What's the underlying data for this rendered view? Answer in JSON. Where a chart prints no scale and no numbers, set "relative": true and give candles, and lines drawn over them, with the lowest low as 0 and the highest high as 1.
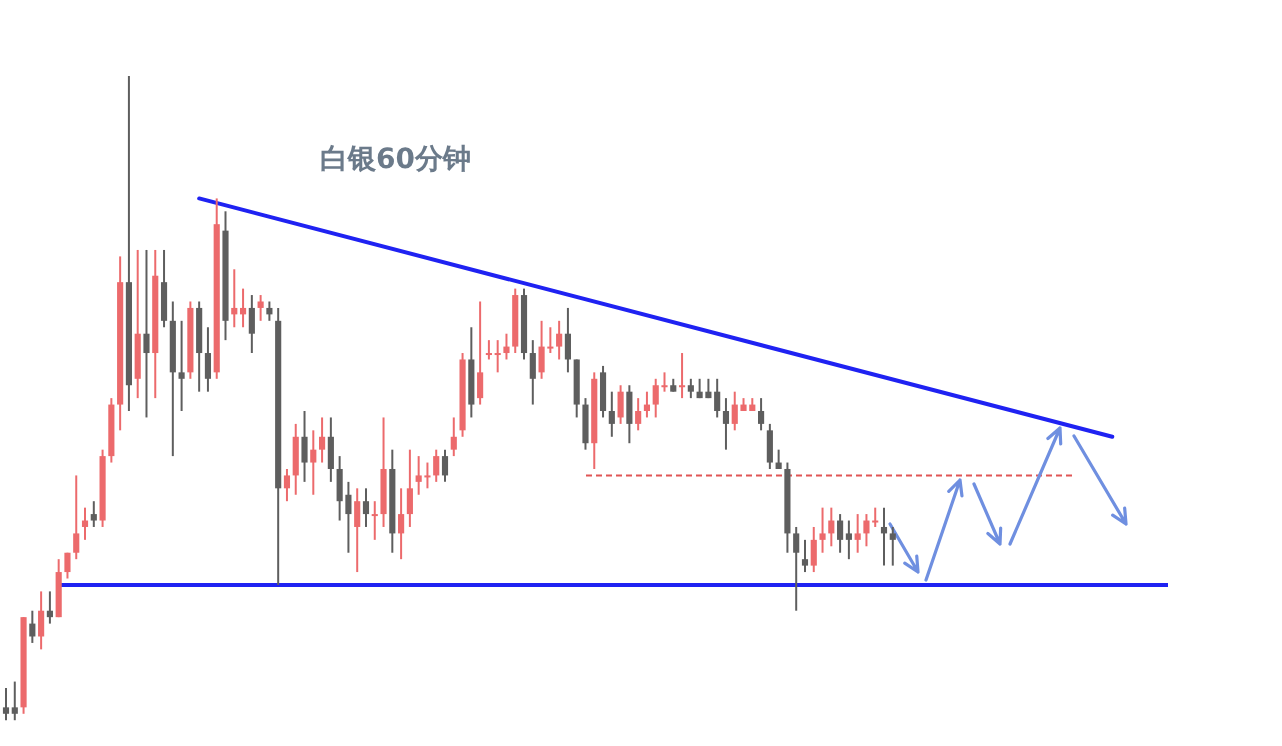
{
  "chart_data": {
    "type": "candlestick",
    "title": "白银60分钟",
    "relative": true,
    "categories": [
      null,
      null,
      null,
      null,
      null,
      null,
      null,
      null,
      null,
      null,
      null,
      null,
      null,
      null,
      null,
      null,
      null,
      null,
      null,
      null,
      null,
      null,
      null,
      null,
      null,
      null,
      null,
      null,
      null,
      null,
      null,
      null,
      null,
      null,
      null,
      null,
      null,
      null,
      null,
      null,
      null,
      null,
      null,
      null,
      null,
      null,
      null,
      null,
      null,
      null,
      null,
      null,
      null,
      null,
      null,
      null,
      null,
      null,
      null,
      null,
      null,
      null,
      null,
      null,
      null,
      null,
      null,
      null,
      null,
      null,
      null,
      null,
      null,
      null,
      null,
      null,
      null,
      null,
      null,
      null,
      null,
      null,
      null,
      null,
      null,
      null,
      null,
      null,
      null,
      null,
      null,
      null,
      null,
      null,
      null,
      null,
      null,
      null,
      null,
      null,
      null,
      null,
      null,
      null,
      null,
      null,
      null,
      null,
      null,
      null,
      null,
      null,
      null,
      null,
      null,
      null,
      null,
      null,
      null,
      null,
      null,
      null,
      null,
      null,
      null,
      null,
      null
    ],
    "ref_lines": [
      {
        "axis": "y",
        "value": 0.21,
        "color": "#1f22f2"
      },
      {
        "axis": "y",
        "value": 0.38,
        "color": "#e05555",
        "line_style": "dashed"
      }
    ],
    "ohlc": [
      [
        0.02,
        0.05,
        0,
        0.01
      ],
      [
        0.02,
        0.06,
        0.0,
        0.01
      ],
      [
        0.02,
        0.16,
        0.01,
        0.16
      ],
      [
        0.15,
        0.17,
        0.12,
        0.13
      ],
      [
        0.13,
        0.2,
        0.11,
        0.17
      ],
      [
        0.17,
        0.2,
        0.15,
        0.16
      ],
      [
        0.16,
        0.25,
        0.16,
        0.23
      ],
      [
        0.23,
        0.26,
        0.22,
        0.26
      ],
      [
        0.26,
        0.38,
        0.25,
        0.29
      ],
      [
        0.3,
        0.33,
        0.28,
        0.31
      ],
      [
        0.32,
        0.34,
        0.3,
        0.31
      ],
      [
        0.31,
        0.42,
        0.3,
        0.41
      ],
      [
        0.41,
        0.5,
        0.4,
        0.49
      ],
      [
        0.49,
        0.72,
        0.45,
        0.68
      ],
      [
        0.68,
        1,
        0.48,
        0.52
      ],
      [
        0.53,
        0.73,
        0.5,
        0.6
      ],
      [
        0.6,
        0.73,
        0.47,
        0.57
      ],
      [
        0.57,
        0.73,
        0.5,
        0.69
      ],
      [
        0.68,
        0.73,
        0.61,
        0.62
      ],
      [
        0.62,
        0.65,
        0.41,
        0.54
      ],
      [
        0.54,
        0.62,
        0.48,
        0.53
      ],
      [
        0.54,
        0.65,
        0.53,
        0.64
      ],
      [
        0.64,
        0.65,
        0.51,
        0.57
      ],
      [
        0.57,
        0.61,
        0.51,
        0.53
      ],
      [
        0.54,
        0.81,
        0.53,
        0.77
      ],
      [
        0.76,
        0.79,
        0.59,
        0.62
      ],
      [
        0.63,
        0.7,
        0.61,
        0.64
      ],
      [
        0.63,
        0.67,
        0.61,
        0.64
      ],
      [
        0.64,
        0.66,
        0.57,
        0.6
      ],
      [
        0.64,
        0.66,
        0.62,
        0.65
      ],
      [
        0.64,
        0.65,
        0.62,
        0.63
      ],
      [
        0.62,
        0.64,
        0.21,
        0.36
      ],
      [
        0.36,
        0.39,
        0.34,
        0.38
      ],
      [
        0.38,
        0.46,
        0.35,
        0.44
      ],
      [
        0.44,
        0.48,
        0.37,
        0.4
      ],
      [
        0.4,
        0.45,
        0.35,
        0.42
      ],
      [
        0.42,
        0.47,
        0.4,
        0.44
      ],
      [
        0.44,
        0.47,
        0.37,
        0.39
      ],
      [
        0.39,
        0.41,
        0.31,
        0.34
      ],
      [
        0.35,
        0.37,
        0.26,
        0.32
      ],
      [
        0.3,
        0.36,
        0.23,
        0.34
      ],
      [
        0.34,
        0.36,
        0.3,
        0.32
      ],
      [
        0.32,
        0.34,
        0.28,
        0.32
      ],
      [
        0.32,
        0.47,
        0.3,
        0.39
      ],
      [
        0.39,
        0.42,
        0.26,
        0.29
      ],
      [
        0.29,
        0.36,
        0.25,
        0.32
      ],
      [
        0.32,
        0.42,
        0.3,
        0.36
      ],
      [
        0.37,
        0.41,
        0.35,
        0.38
      ],
      [
        0.38,
        0.4,
        0.36,
        0.38
      ],
      [
        0.38,
        0.42,
        0.37,
        0.41
      ],
      [
        0.41,
        0.42,
        0.37,
        0.38
      ],
      [
        0.42,
        0.47,
        0.41,
        0.44
      ],
      [
        0.45,
        0.57,
        0.44,
        0.56
      ],
      [
        0.56,
        0.61,
        0.47,
        0.49
      ],
      [
        0.5,
        0.65,
        0.49,
        0.54
      ],
      [
        0.57,
        0.59,
        0.56,
        0.57
      ],
      [
        0.57,
        0.59,
        0.54,
        0.57
      ],
      [
        0.57,
        0.6,
        0.56,
        0.58
      ],
      [
        0.58,
        0.67,
        0.57,
        0.66
      ],
      [
        0.66,
        0.67,
        0.56,
        0.57
      ],
      [
        0.57,
        0.59,
        0.49,
        0.53
      ],
      [
        0.54,
        0.62,
        0.53,
        0.58
      ],
      [
        0.58,
        0.61,
        0.57,
        0.58
      ],
      [
        0.58,
        0.62,
        0.56,
        0.6
      ],
      [
        0.6,
        0.64,
        0.54,
        0.56
      ],
      [
        0.56,
        0.56,
        0.47,
        0.49
      ],
      [
        0.49,
        0.5,
        0.42,
        0.43
      ],
      [
        0.43,
        0.54,
        0.39,
        0.53
      ],
      [
        0.54,
        0.55,
        0.47,
        0.48
      ],
      [
        0.48,
        0.51,
        0.44,
        0.46
      ],
      [
        0.47,
        0.52,
        0.46,
        0.51
      ],
      [
        0.51,
        0.52,
        0.43,
        0.46
      ],
      [
        0.46,
        0.5,
        0.45,
        0.48
      ],
      [
        0.48,
        0.51,
        0.47,
        0.49
      ],
      [
        0.49,
        0.53,
        0.47,
        0.52
      ],
      [
        0.52,
        0.54,
        0.51,
        0.52
      ],
      [
        0.52,
        0.53,
        0.51,
        0.51
      ],
      [
        0.52,
        0.57,
        0.5,
        0.52
      ],
      [
        0.52,
        0.53,
        0.5,
        0.51
      ],
      [
        0.51,
        0.53,
        0.5,
        0.5
      ],
      [
        0.51,
        0.53,
        0.5,
        0.5
      ],
      [
        0.51,
        0.53,
        0.47,
        0.48
      ],
      [
        0.48,
        0.5,
        0.42,
        0.46
      ],
      [
        0.46,
        0.51,
        0.45,
        0.49
      ],
      [
        0.48,
        0.5,
        0.48,
        0.49
      ],
      [
        0.48,
        0.5,
        0.48,
        0.49
      ],
      [
        0.48,
        0.5,
        0.45,
        0.46
      ],
      [
        0.45,
        0.46,
        0.39,
        0.4
      ],
      [
        0.4,
        0.42,
        0.39,
        0.39
      ],
      [
        0.39,
        0.4,
        0.26,
        0.29
      ],
      [
        0.29,
        0.3,
        0.17,
        0.26
      ],
      [
        0.25,
        0.28,
        0.23,
        0.24
      ],
      [
        0.24,
        0.3,
        0.23,
        0.28
      ],
      [
        0.28,
        0.33,
        0.26,
        0.29
      ],
      [
        0.29,
        0.33,
        0.27,
        0.31
      ],
      [
        0.31,
        0.32,
        0.26,
        0.28
      ],
      [
        0.29,
        0.31,
        0.25,
        0.28
      ],
      [
        0.28,
        0.32,
        0.26,
        0.29
      ],
      [
        0.29,
        0.32,
        0.27,
        0.31
      ],
      [
        0.31,
        0.33,
        0.3,
        0.31
      ],
      [
        0.3,
        0.33,
        0.24,
        0.29
      ],
      [
        0.29,
        0.3,
        0.24,
        0.28
      ],
      null,
      null,
      null,
      null,
      null,
      null,
      null,
      null,
      null,
      null,
      null,
      null,
      null,
      null,
      null,
      null,
      null,
      null,
      null,
      null,
      null,
      null,
      null,
      null,
      null
    ],
    "series": [
      {
        "type": "line",
        "values": [
          null,
          null,
          null,
          null,
          null,
          null,
          null,
          null,
          null,
          null,
          null,
          null,
          null,
          null,
          null,
          null,
          null,
          null,
          null,
          null,
          null,
          null,
          0.81,
          null,
          null,
          null,
          null,
          null,
          null,
          null,
          null,
          null,
          null,
          null,
          null,
          null,
          null,
          null,
          null,
          null,
          null,
          null,
          null,
          null,
          null,
          null,
          null,
          null,
          null,
          null,
          null,
          null,
          null,
          null,
          null,
          null,
          null,
          null,
          null,
          null,
          null,
          null,
          null,
          null,
          null,
          null,
          null,
          null,
          null,
          null,
          null,
          null,
          null,
          null,
          null,
          null,
          null,
          null,
          null,
          null,
          null,
          null,
          null,
          null,
          null,
          null,
          null,
          null,
          null,
          null,
          null,
          null,
          null,
          null,
          null,
          null,
          null,
          null,
          null,
          null,
          null,
          null,
          null,
          null,
          null,
          null,
          null,
          null,
          null,
          null,
          null,
          null,
          null,
          null,
          null,
          null,
          null,
          null,
          null,
          null,
          null,
          null,
          null,
          null,
          null,
          null,
          0.44
        ],
        "color": "#1f22f2"
      }
    ]
  }
}
